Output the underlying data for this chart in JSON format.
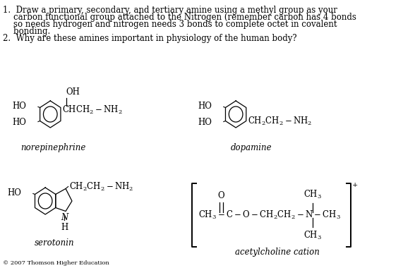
{
  "bg_color": "#ffffff",
  "text_color": "#000000",
  "title_line1": "1.  Draw a primary, secondary, and tertiary amine using a methyl group as your",
  "title_line2": "    carbon functional group attached to the Nitrogen (remember carbon has 4 bonds",
  "title_line3": "    so needs hydrogen and nitrogen needs 3 bonds to complete octet in covalent",
  "title_line4": "    bonding.",
  "title_line5": "2.  Why are these amines important in physiology of the human body?",
  "label_norepinephrine": "norepinephrine",
  "label_dopamine": "dopamine",
  "label_serotonin": "serotonin",
  "label_acetylcholine": "acetylcholine cation",
  "label_copyright": "© 2007 Thomson Higher Education",
  "fontsize_body": 8.5,
  "fontsize_label": 8.5,
  "fontsize_chem": 8.5,
  "fontsize_copyright": 6.0
}
